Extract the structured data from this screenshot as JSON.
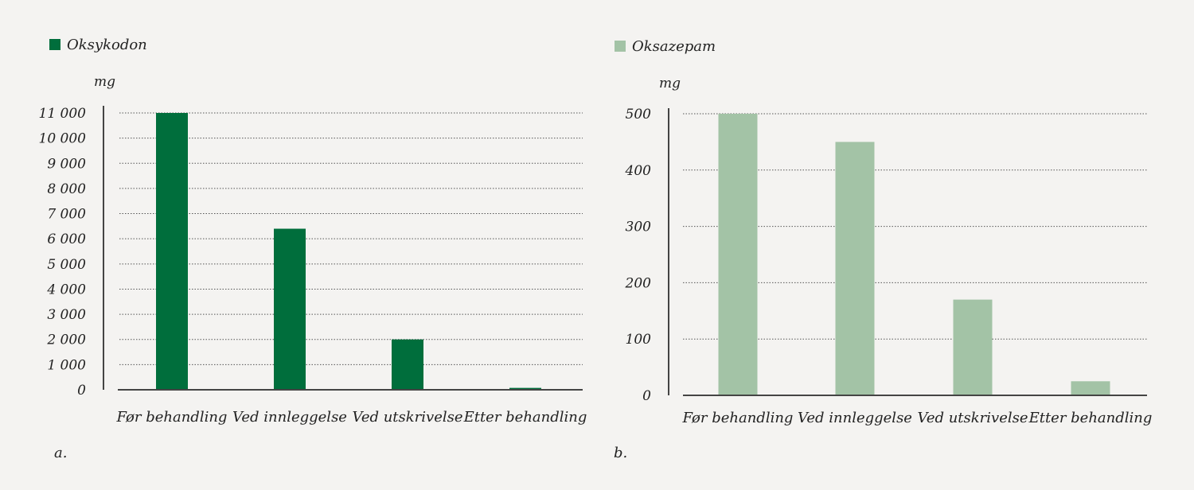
{
  "chart_data": [
    {
      "type": "bar",
      "panel_label": "a.",
      "legend": "Oksykodon",
      "ylabel": "mg",
      "color": "#006e3c",
      "categories": [
        "Før behandling",
        "Ved innleggelse",
        "Ved utskrivelse",
        "Etter behandling"
      ],
      "values": [
        11000,
        6400,
        2000,
        75
      ],
      "ylim": [
        0,
        11000
      ],
      "yticks": [
        0,
        1000,
        2000,
        3000,
        4000,
        5000,
        6000,
        7000,
        8000,
        9000,
        10000,
        11000
      ],
      "ytick_labels": [
        "0",
        "1 000",
        "2 000",
        "3 000",
        "4 000",
        "5 000",
        "6 000",
        "7 000",
        "8 000",
        "9 000",
        "10 000",
        "11 000"
      ],
      "grid": true
    },
    {
      "type": "bar",
      "panel_label": "b.",
      "legend": "Oksazepam",
      "ylabel": "mg",
      "color": "#a3c3a6",
      "categories": [
        "Før behandling",
        "Ved innleggelse",
        "Ved utskrivelse",
        "Etter behandling"
      ],
      "values": [
        500,
        450,
        170,
        25
      ],
      "ylim": [
        0,
        500
      ],
      "yticks": [
        0,
        100,
        200,
        300,
        400,
        500
      ],
      "ytick_labels": [
        "0",
        "100",
        "200",
        "300",
        "400",
        "500"
      ],
      "grid": true
    }
  ]
}
